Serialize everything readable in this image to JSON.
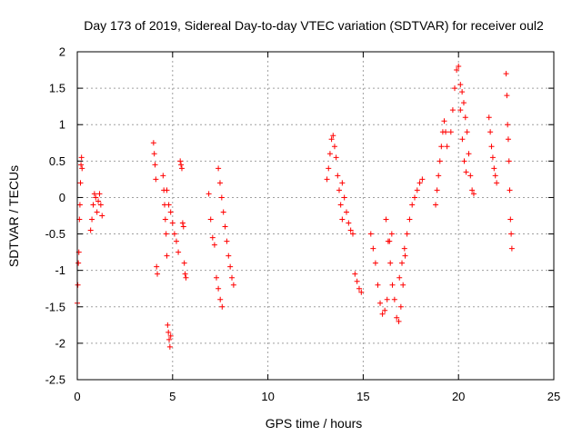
{
  "chart_data": {
    "type": "scatter",
    "title": "Day 173 of 2019, Sidereal Day-to-day VTEC variation (SDTVAR) for receiver oul2",
    "xlabel": "GPS time / hours",
    "ylabel": "SDTVAR / TECUs",
    "xlim": [
      0,
      25
    ],
    "ylim": [
      -2.5,
      2
    ],
    "x_ticks": [
      0,
      5,
      10,
      15,
      20,
      25
    ],
    "x_tick_labels": [
      "0",
      "5",
      "10",
      "15",
      "20",
      "25"
    ],
    "y_ticks": [
      2,
      1.5,
      1,
      0.5,
      0,
      -0.5,
      -1,
      -1.5,
      -2,
      -2.5
    ],
    "y_tick_labels": [
      "2",
      "1.5",
      "1",
      "0.5",
      "0",
      "-0.5",
      "-1",
      "-1.5",
      "-2",
      "-2.5"
    ],
    "grid": true,
    "marker": "+",
    "color": "#ff0000",
    "series": [
      {
        "name": "SDTVAR",
        "segments": [
          {
            "x_start": 0.0,
            "x_end": 0.25,
            "y": [
              -1.45,
              -1.2,
              -0.9,
              -0.75,
              -0.3,
              -0.1,
              0.2,
              0.45,
              0.55,
              0.4
            ]
          },
          {
            "x_start": 0.7,
            "x_end": 1.3,
            "y": [
              -0.45,
              -0.3,
              -0.1,
              0.05,
              0.0,
              -0.2,
              -0.05,
              0.05,
              -0.1,
              -0.25
            ]
          },
          {
            "x_start": 4.0,
            "x_end": 4.2,
            "y": [
              0.75,
              0.6,
              0.45,
              0.25,
              -0.95,
              -1.05
            ]
          },
          {
            "x_start": 4.5,
            "x_end": 4.9,
            "y": [
              0.3,
              0.1,
              -0.1,
              -0.3,
              -0.5,
              -0.8,
              -1.75,
              -1.85,
              -1.95,
              -2.05,
              -1.9
            ]
          },
          {
            "x_start": 4.7,
            "x_end": 5.3,
            "y": [
              0.1,
              -0.1,
              -0.2,
              -0.35,
              -0.5,
              -0.6,
              -0.75
            ]
          },
          {
            "x_start": 5.4,
            "x_end": 5.7,
            "y": [
              0.5,
              0.45,
              0.4,
              -0.35,
              -0.4,
              -0.9,
              -1.05,
              -1.1
            ]
          },
          {
            "x_start": 6.9,
            "x_end": 7.6,
            "y": [
              0.05,
              -0.3,
              -0.55,
              -0.65,
              -1.1,
              -1.25,
              -1.4,
              -1.5
            ]
          },
          {
            "x_start": 7.4,
            "x_end": 8.2,
            "y": [
              0.4,
              0.2,
              0.0,
              -0.2,
              -0.4,
              -0.6,
              -0.8,
              -0.95,
              -1.1,
              -1.2
            ]
          },
          {
            "x_start": 13.1,
            "x_end": 13.9,
            "y": [
              0.25,
              0.4,
              0.6,
              0.8,
              0.85,
              0.7,
              0.55,
              0.3,
              0.1,
              -0.1,
              -0.3
            ]
          },
          {
            "x_start": 13.9,
            "x_end": 14.9,
            "y": [
              0.2,
              0.0,
              -0.2,
              -0.35,
              -0.45,
              -0.5,
              -1.05,
              -1.15,
              -1.25,
              -1.3
            ]
          },
          {
            "x_start": 15.4,
            "x_end": 16.5,
            "y": [
              -0.5,
              -0.7,
              -0.9,
              -1.2,
              -1.45,
              -1.6,
              -1.55,
              -1.4,
              -0.6,
              -0.5
            ]
          },
          {
            "x_start": 16.2,
            "x_end": 17.2,
            "y": [
              -0.3,
              -0.6,
              -0.9,
              -1.2,
              -1.4,
              -1.65,
              -1.7,
              -1.5,
              -1.2,
              -0.8
            ]
          },
          {
            "x_start": 16.9,
            "x_end": 18.1,
            "y": [
              -1.1,
              -0.9,
              -0.7,
              -0.5,
              -0.3,
              -0.1,
              0.0,
              0.1,
              0.2,
              0.25
            ]
          },
          {
            "x_start": 18.8,
            "x_end": 19.4,
            "y": [
              -0.1,
              0.1,
              0.3,
              0.5,
              0.7,
              0.9,
              1.05,
              0.9,
              0.7
            ]
          },
          {
            "x_start": 19.6,
            "x_end": 20.4,
            "y": [
              0.9,
              1.2,
              1.5,
              1.75,
              1.8,
              1.2,
              0.8,
              0.5,
              0.35
            ]
          },
          {
            "x_start": 20.1,
            "x_end": 20.8,
            "y": [
              1.55,
              1.45,
              1.3,
              1.1,
              0.9,
              0.6,
              0.3,
              0.1,
              0.05
            ]
          },
          {
            "x_start": 21.6,
            "x_end": 22.0,
            "y": [
              1.1,
              0.9,
              0.7,
              0.55,
              0.4,
              0.3,
              0.2
            ]
          },
          {
            "x_start": 22.5,
            "x_end": 22.8,
            "y": [
              1.7,
              1.4,
              1.0,
              0.8,
              0.5,
              0.1,
              -0.3,
              -0.5,
              -0.7
            ]
          }
        ]
      }
    ]
  }
}
